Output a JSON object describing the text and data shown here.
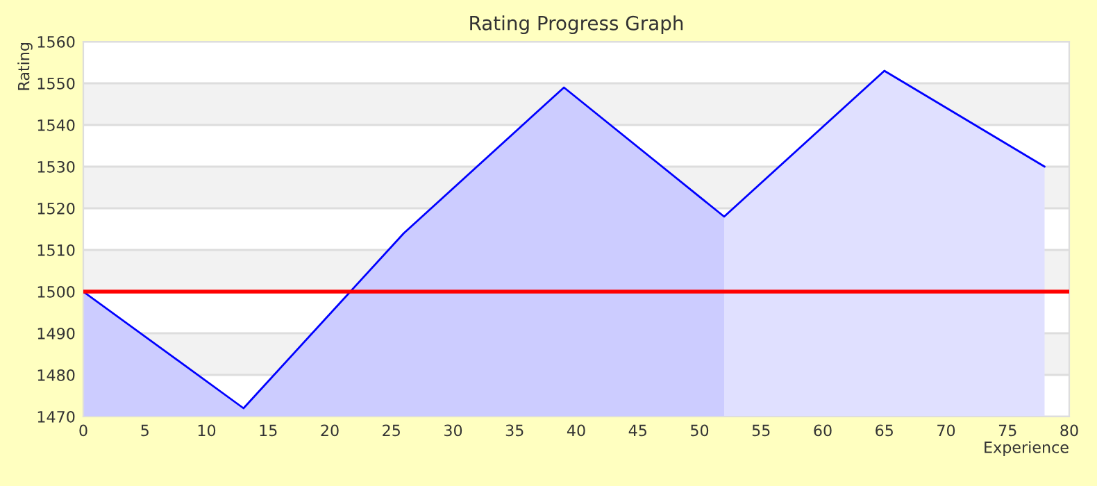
{
  "chart_data": {
    "type": "line",
    "title": "Rating Progress Graph",
    "xlabel": "Experience",
    "ylabel": "Rating",
    "series": [
      {
        "type": "area",
        "color": "#ccccff",
        "x": [
          0,
          13,
          26,
          39,
          52
        ],
        "values": [
          1500,
          1472,
          1514,
          1549,
          1518
        ]
      },
      {
        "type": "area",
        "color": "#e0e0ff",
        "x": [
          52,
          65,
          78
        ],
        "values": [
          1518,
          1553,
          1530
        ]
      },
      {
        "color": "#0000ff",
        "x": [
          0,
          13,
          26,
          39,
          52,
          65,
          78
        ],
        "values": [
          1500,
          1472,
          1514,
          1549,
          1518,
          1553,
          1530
        ]
      }
    ],
    "xlim": [
      0,
      80
    ],
    "xticks": [
      0,
      5,
      10,
      15,
      20,
      25,
      30,
      35,
      40,
      45,
      50,
      55,
      60,
      65,
      70,
      75,
      80
    ],
    "ylim": [
      1470,
      1560
    ],
    "yticks": [
      1470,
      1480,
      1490,
      1500,
      1510,
      1520,
      1530,
      1540,
      1550,
      1560
    ],
    "bands": [
      {
        "axis": "y",
        "from": 1480,
        "to": 1490,
        "color": "#f2f2f2"
      },
      {
        "axis": "y",
        "from": 1500,
        "to": 1510,
        "color": "#f2f2f2"
      },
      {
        "axis": "y",
        "from": 1520,
        "to": 1530,
        "color": "#f2f2f2"
      },
      {
        "axis": "y",
        "from": 1540,
        "to": 1550,
        "color": "#f2f2f2"
      }
    ],
    "ref_lines": [
      {
        "axis": "y",
        "value": 1500,
        "color": "#ff0000"
      }
    ],
    "grid": "y",
    "legend": false,
    "marker": "none",
    "line_style": "solid"
  }
}
